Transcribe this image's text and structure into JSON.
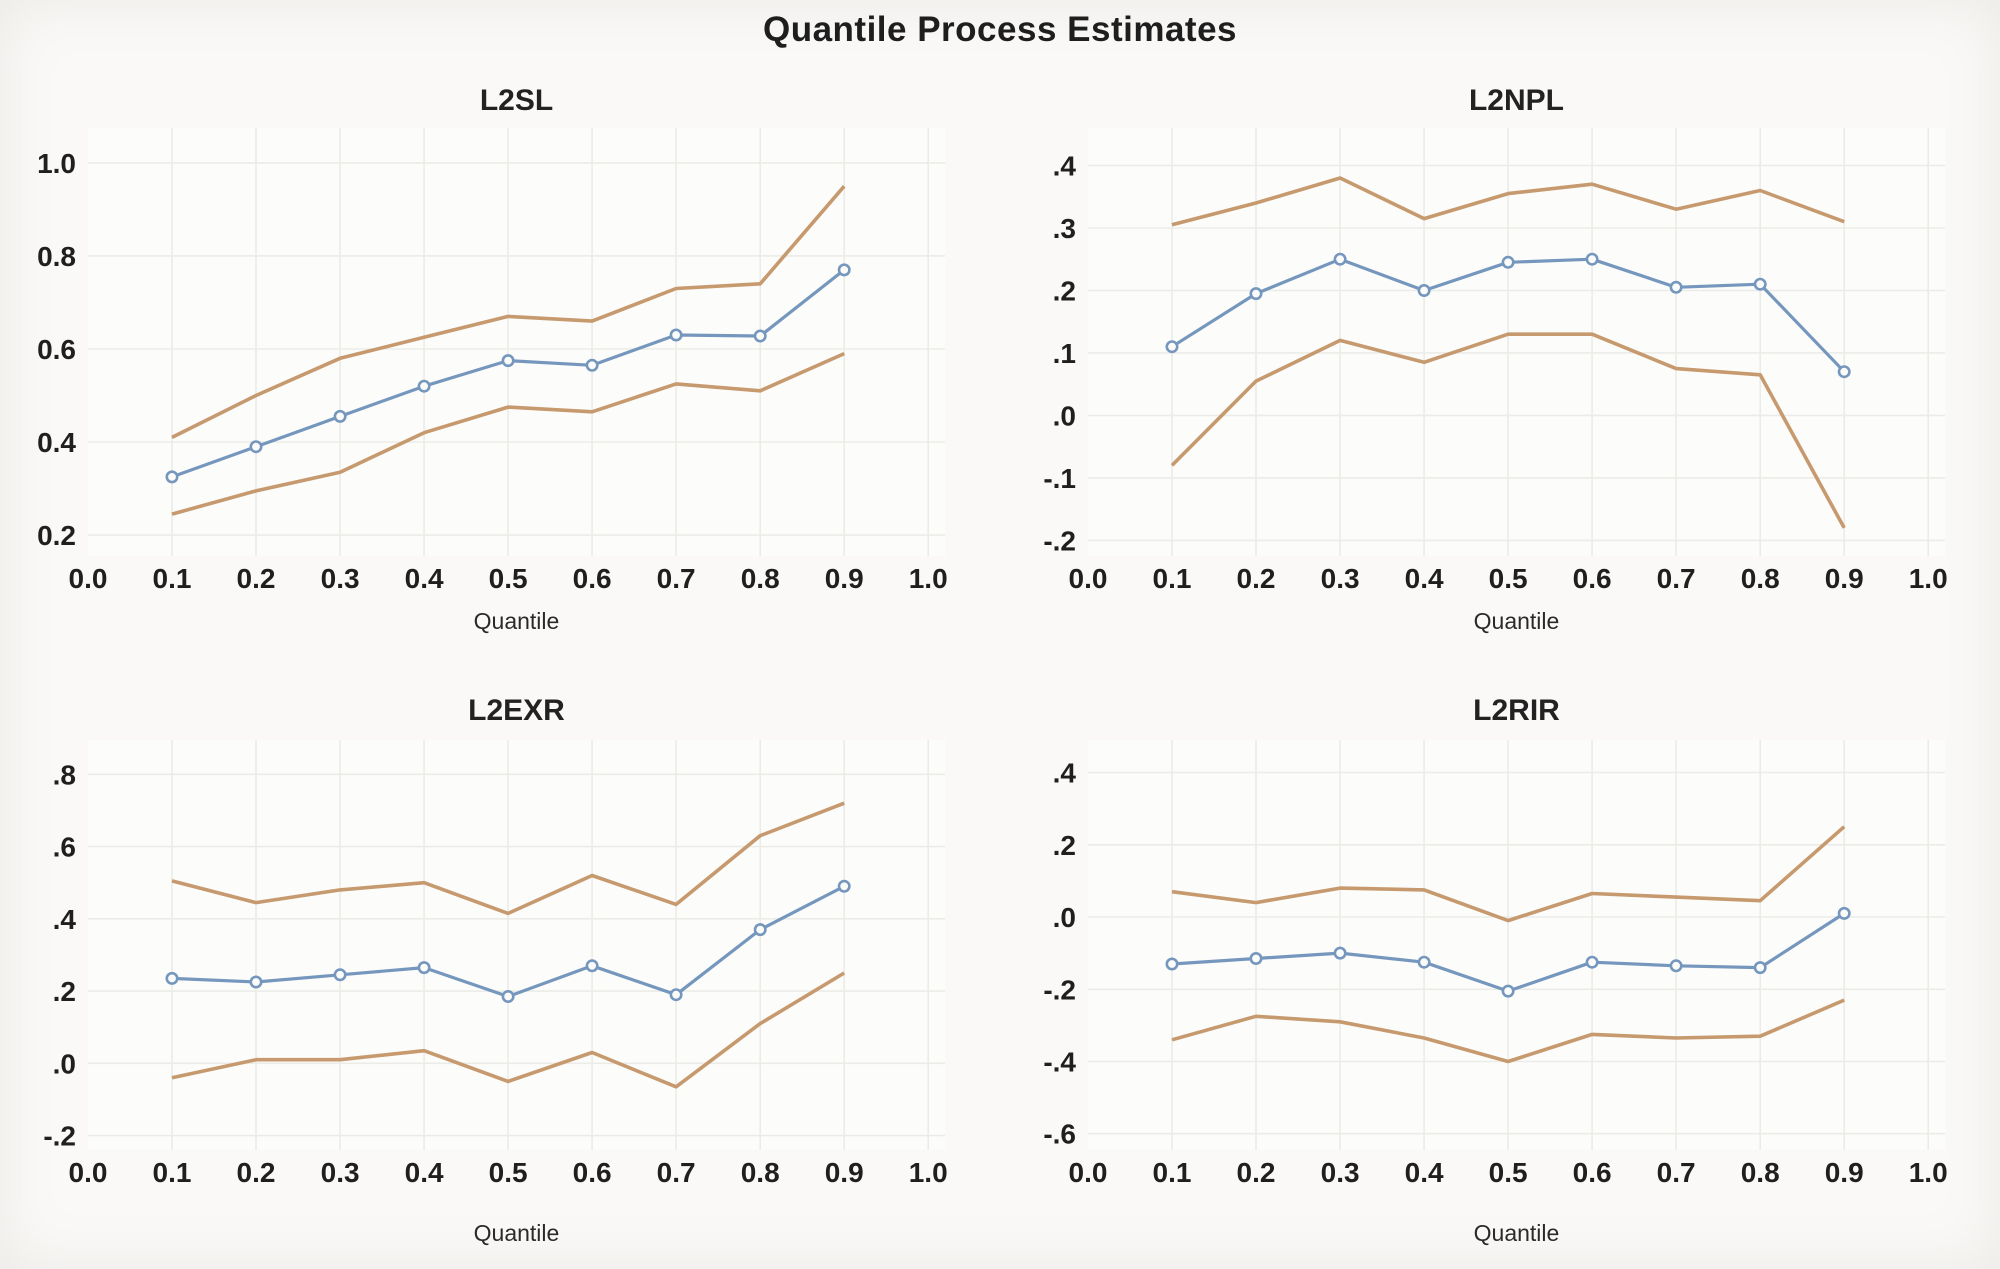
{
  "figure": {
    "title": "Quantile Process Estimates"
  },
  "colors": {
    "estimate": "#7697bd",
    "band": "#c69a6e",
    "grid": "#ebebe8",
    "text": "#1f1f1f",
    "marker_fill": "#fbfbfa",
    "plot_background": "#fcfcfa"
  },
  "chart_data": [
    {
      "type": "line",
      "title": "L2SL",
      "xlabel": "Quantile",
      "x": [
        0.1,
        0.2,
        0.3,
        0.4,
        0.5,
        0.6,
        0.7,
        0.8,
        0.9
      ],
      "xlim": [
        0.0,
        1.02
      ],
      "ylim": [
        0.155,
        1.075
      ],
      "xtick_values": [
        0.0,
        0.1,
        0.2,
        0.3,
        0.4,
        0.5,
        0.6,
        0.7,
        0.8,
        0.9,
        1.0
      ],
      "xtick_labels": [
        "0.0",
        "0.1",
        "0.2",
        "0.3",
        "0.4",
        "0.5",
        "0.6",
        "0.7",
        "0.8",
        "0.9",
        "1.0"
      ],
      "ytick_values": [
        1.0,
        0.8,
        0.6,
        0.4,
        0.2
      ],
      "ytick_labels": [
        "1.0",
        "0.8",
        "0.6",
        "0.4",
        "0.2"
      ],
      "series": [
        {
          "name": "upper-confidence-band",
          "role": "band",
          "values": [
            0.41,
            0.5,
            0.58,
            0.625,
            0.67,
            0.66,
            0.73,
            0.74,
            0.95
          ]
        },
        {
          "name": "estimate",
          "role": "estimate",
          "values": [
            0.325,
            0.39,
            0.455,
            0.52,
            0.575,
            0.565,
            0.63,
            0.628,
            0.77
          ]
        },
        {
          "name": "lower-confidence-band",
          "role": "band",
          "values": [
            0.245,
            0.295,
            0.335,
            0.42,
            0.475,
            0.465,
            0.525,
            0.51,
            0.59
          ]
        }
      ]
    },
    {
      "type": "line",
      "title": "L2NPL",
      "xlabel": "Quantile",
      "x": [
        0.1,
        0.2,
        0.3,
        0.4,
        0.5,
        0.6,
        0.7,
        0.8,
        0.9
      ],
      "xlim": [
        0.0,
        1.02
      ],
      "ylim": [
        -0.225,
        0.46
      ],
      "xtick_values": [
        0.0,
        0.1,
        0.2,
        0.3,
        0.4,
        0.5,
        0.6,
        0.7,
        0.8,
        0.9,
        1.0
      ],
      "xtick_labels": [
        "0.0",
        "0.1",
        "0.2",
        "0.3",
        "0.4",
        "0.5",
        "0.6",
        "0.7",
        "0.8",
        "0.9",
        "1.0"
      ],
      "ytick_values": [
        0.4,
        0.3,
        0.2,
        0.1,
        0.0,
        -0.1,
        -0.2
      ],
      "ytick_labels": [
        ".4",
        ".3",
        ".2",
        ".1",
        ".0",
        "-.1",
        "-.2"
      ],
      "series": [
        {
          "name": "upper-confidence-band",
          "role": "band",
          "values": [
            0.305,
            0.34,
            0.38,
            0.315,
            0.355,
            0.37,
            0.33,
            0.36,
            0.31
          ]
        },
        {
          "name": "estimate",
          "role": "estimate",
          "values": [
            0.11,
            0.195,
            0.25,
            0.2,
            0.245,
            0.25,
            0.205,
            0.21,
            0.07
          ]
        },
        {
          "name": "lower-confidence-band",
          "role": "band",
          "values": [
            -0.08,
            0.055,
            0.12,
            0.085,
            0.13,
            0.13,
            0.075,
            0.065,
            -0.18
          ]
        }
      ]
    },
    {
      "type": "line",
      "title": "L2EXR",
      "xlabel": "Quantile",
      "x": [
        0.1,
        0.2,
        0.3,
        0.4,
        0.5,
        0.6,
        0.7,
        0.8,
        0.9
      ],
      "xlim": [
        0.0,
        1.02
      ],
      "ylim": [
        -0.24,
        0.895
      ],
      "xtick_values": [
        0.0,
        0.1,
        0.2,
        0.3,
        0.4,
        0.5,
        0.6,
        0.7,
        0.8,
        0.9,
        1.0
      ],
      "xtick_labels": [
        "0.0",
        "0.1",
        "0.2",
        "0.3",
        "0.4",
        "0.5",
        "0.6",
        "0.7",
        "0.8",
        "0.9",
        "1.0"
      ],
      "ytick_values": [
        0.8,
        0.6,
        0.4,
        0.2,
        0.0,
        -0.2
      ],
      "ytick_labels": [
        ".8",
        ".6",
        ".4",
        ".2",
        ".0",
        "-.2"
      ],
      "series": [
        {
          "name": "upper-confidence-band",
          "role": "band",
          "values": [
            0.505,
            0.445,
            0.48,
            0.5,
            0.415,
            0.52,
            0.44,
            0.63,
            0.72
          ]
        },
        {
          "name": "estimate",
          "role": "estimate",
          "values": [
            0.235,
            0.225,
            0.245,
            0.265,
            0.185,
            0.27,
            0.19,
            0.37,
            0.49
          ]
        },
        {
          "name": "lower-confidence-band",
          "role": "band",
          "values": [
            -0.04,
            0.01,
            0.01,
            0.035,
            -0.05,
            0.03,
            -0.065,
            0.11,
            0.25
          ]
        }
      ]
    },
    {
      "type": "line",
      "title": "L2RIR",
      "xlabel": "Quantile",
      "x": [
        0.1,
        0.2,
        0.3,
        0.4,
        0.5,
        0.6,
        0.7,
        0.8,
        0.9
      ],
      "xlim": [
        0.0,
        1.02
      ],
      "ylim": [
        -0.645,
        0.49
      ],
      "xtick_values": [
        0.0,
        0.1,
        0.2,
        0.3,
        0.4,
        0.5,
        0.6,
        0.7,
        0.8,
        0.9,
        1.0
      ],
      "xtick_labels": [
        "0.0",
        "0.1",
        "0.2",
        "0.3",
        "0.4",
        "0.5",
        "0.6",
        "0.7",
        "0.8",
        "0.9",
        "1.0"
      ],
      "ytick_values": [
        0.4,
        0.2,
        0.0,
        -0.2,
        -0.4,
        -0.6
      ],
      "ytick_labels": [
        ".4",
        ".2",
        ".0",
        "-.2",
        "-.4",
        "-.6"
      ],
      "series": [
        {
          "name": "upper-confidence-band",
          "role": "band",
          "values": [
            0.07,
            0.04,
            0.08,
            0.075,
            -0.01,
            0.065,
            0.055,
            0.045,
            0.25
          ]
        },
        {
          "name": "estimate",
          "role": "estimate",
          "values": [
            -0.13,
            -0.115,
            -0.1,
            -0.125,
            -0.205,
            -0.125,
            -0.135,
            -0.14,
            0.01
          ]
        },
        {
          "name": "lower-confidence-band",
          "role": "band",
          "values": [
            -0.34,
            -0.275,
            -0.29,
            -0.335,
            -0.4,
            -0.325,
            -0.335,
            -0.33,
            -0.23
          ]
        }
      ]
    }
  ]
}
